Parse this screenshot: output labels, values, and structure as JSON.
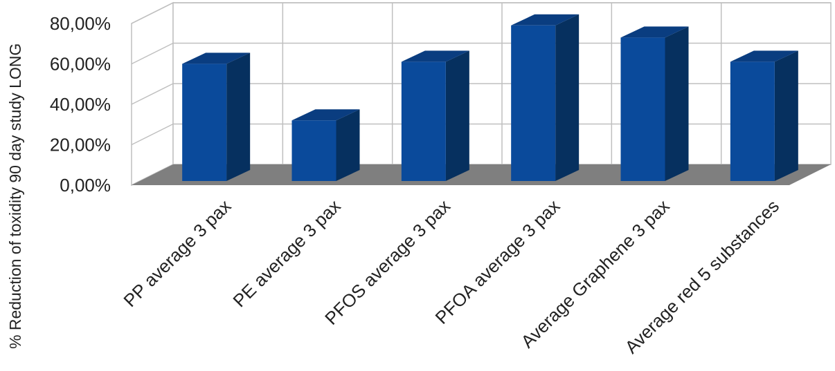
{
  "chart_data": {
    "type": "bar",
    "style": "3d-column",
    "title": "",
    "xlabel": "",
    "ylabel": "% Reduction of toxidity 90 day study LONG",
    "categories": [
      "PP average 3 pax",
      "PE average 3 pax",
      "PFOS average 3 pax",
      "PFOA average 3 pax",
      "Average Graphene 3 pax",
      "Average red 5 substances"
    ],
    "series": [
      {
        "values": [
          58.0,
          30.0,
          59.0,
          77.0,
          71.0,
          59.0
        ]
      }
    ],
    "ylim": [
      0,
      80
    ],
    "y_ticks": [
      0,
      20,
      40,
      60,
      80
    ],
    "y_tick_labels": [
      "0,00%",
      "20,00%",
      "40,00%",
      "60,00%",
      "80,00%"
    ],
    "grid": true,
    "legend": "none",
    "colors": {
      "bar_front": "#0a4a9b",
      "bar_side": "#06305f",
      "bar_top": "#0a3d80",
      "floor": "#7f7f7f",
      "grid": "#bfbfbf"
    }
  }
}
